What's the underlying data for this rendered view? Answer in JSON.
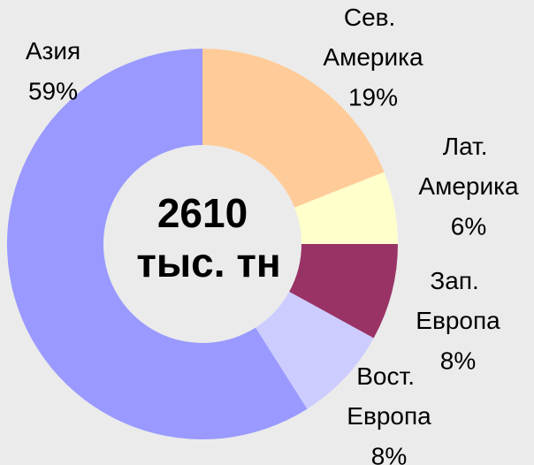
{
  "chart_data": {
    "type": "donut",
    "categories": [
      "Сев. Америка",
      "Лат. Америка",
      "Зап. Европа",
      "Вост. Европа",
      "Азия"
    ],
    "values": [
      19,
      6,
      8,
      8,
      59
    ],
    "value_labels": [
      "19%",
      "6%",
      "8%",
      "8%",
      "59%"
    ],
    "colors": [
      "#ffcc99",
      "#ffffcc",
      "#993366",
      "#ccccff",
      "#9999ff"
    ],
    "center_text": [
      "2610",
      "тыс. тн"
    ]
  }
}
